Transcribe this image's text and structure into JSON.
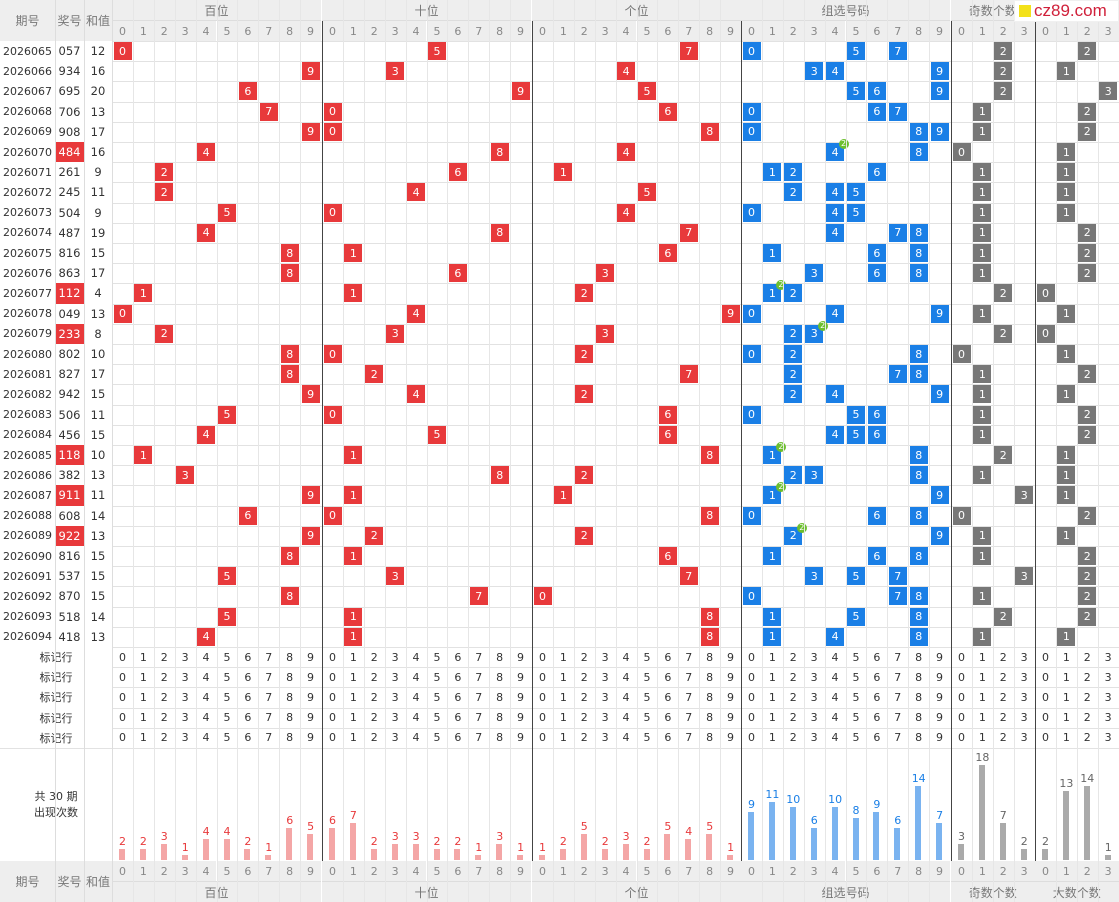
{
  "logo": {
    "text": "cz89.com"
  },
  "headers": {
    "period": "期号",
    "award": "奖号",
    "sum": "和值",
    "groups": [
      "百位",
      "十位",
      "个位",
      "组选号码",
      "奇数个数",
      "大数个数"
    ],
    "digits10": [
      "0",
      "1",
      "2",
      "3",
      "4",
      "5",
      "6",
      "7",
      "8",
      "9"
    ],
    "digits4": [
      "0",
      "1",
      "2",
      "3"
    ]
  },
  "rows": [
    {
      "period": "2026065",
      "award": "057",
      "sum": "12",
      "odd": 2,
      "big": 2
    },
    {
      "period": "2026066",
      "award": "934",
      "sum": "16",
      "odd": 2,
      "big": 1
    },
    {
      "period": "2026067",
      "award": "695",
      "sum": "20",
      "odd": 2,
      "big": 3
    },
    {
      "period": "2026068",
      "award": "706",
      "sum": "13",
      "odd": 1,
      "big": 2
    },
    {
      "period": "2026069",
      "award": "908",
      "sum": "17",
      "odd": 1,
      "big": 2
    },
    {
      "period": "2026070",
      "award": "484",
      "sum": "16",
      "odd": 0,
      "big": 1
    },
    {
      "period": "2026071",
      "award": "261",
      "sum": "9",
      "odd": 1,
      "big": 1
    },
    {
      "period": "2026072",
      "award": "245",
      "sum": "11",
      "odd": 1,
      "big": 1
    },
    {
      "period": "2026073",
      "award": "504",
      "sum": "9",
      "odd": 1,
      "big": 1
    },
    {
      "period": "2026074",
      "award": "487",
      "sum": "19",
      "odd": 1,
      "big": 2
    },
    {
      "period": "2026075",
      "award": "816",
      "sum": "15",
      "odd": 1,
      "big": 2
    },
    {
      "period": "2026076",
      "award": "863",
      "sum": "17",
      "odd": 1,
      "big": 2
    },
    {
      "period": "2026077",
      "award": "112",
      "sum": "4",
      "odd": 2,
      "big": 0
    },
    {
      "period": "2026078",
      "award": "049",
      "sum": "13",
      "odd": 1,
      "big": 1
    },
    {
      "period": "2026079",
      "award": "233",
      "sum": "8",
      "odd": 2,
      "big": 0
    },
    {
      "period": "2026080",
      "award": "802",
      "sum": "10",
      "odd": 0,
      "big": 1
    },
    {
      "period": "2026081",
      "award": "827",
      "sum": "17",
      "odd": 1,
      "big": 2
    },
    {
      "period": "2026082",
      "award": "942",
      "sum": "15",
      "odd": 1,
      "big": 1
    },
    {
      "period": "2026083",
      "award": "506",
      "sum": "11",
      "odd": 1,
      "big": 2
    },
    {
      "period": "2026084",
      "award": "456",
      "sum": "15",
      "odd": 1,
      "big": 2
    },
    {
      "period": "2026085",
      "award": "118",
      "sum": "10",
      "odd": 2,
      "big": 1
    },
    {
      "period": "2026086",
      "award": "382",
      "sum": "13",
      "odd": 1,
      "big": 1
    },
    {
      "period": "2026087",
      "award": "911",
      "sum": "11",
      "odd": 3,
      "big": 1
    },
    {
      "period": "2026088",
      "award": "608",
      "sum": "14",
      "odd": 0,
      "big": 2
    },
    {
      "period": "2026089",
      "award": "922",
      "sum": "13",
      "odd": 1,
      "big": 1
    },
    {
      "period": "2026090",
      "award": "816",
      "sum": "15",
      "odd": 1,
      "big": 2
    },
    {
      "period": "2026091",
      "award": "537",
      "sum": "15",
      "odd": 3,
      "big": 2
    },
    {
      "period": "2026092",
      "award": "870",
      "sum": "15",
      "odd": 1,
      "big": 2
    },
    {
      "period": "2026093",
      "award": "518",
      "sum": "14",
      "odd": 2,
      "big": 2
    },
    {
      "period": "2026094",
      "award": "418",
      "sum": "13",
      "odd": 1,
      "big": 1
    }
  ],
  "mark_rows": [
    "标记行",
    "标记行",
    "标记行",
    "标记行",
    "标记行"
  ],
  "stats": {
    "label_line1": "共 30 期",
    "label_line2": "出现次数",
    "bai": [
      2,
      2,
      3,
      1,
      4,
      4,
      2,
      1,
      6,
      5
    ],
    "shi": [
      6,
      7,
      2,
      3,
      3,
      2,
      2,
      1,
      3,
      1
    ],
    "ge": [
      1,
      2,
      5,
      2,
      3,
      2,
      5,
      4,
      5,
      1
    ],
    "zu": [
      9,
      11,
      10,
      6,
      10,
      8,
      9,
      6,
      14,
      7
    ],
    "odd": [
      3,
      18,
      7,
      2
    ],
    "big": [
      2,
      13,
      14,
      1
    ]
  },
  "colors": {
    "red": "#e8393b",
    "blue": "#1a7fe6",
    "gray": "#777777",
    "green": "#6cbf2e",
    "pinkbar": "#f4a6a6",
    "bluebar": "#7ab3f0",
    "graybar": "#aaaaaa"
  },
  "dup_badge": "2"
}
